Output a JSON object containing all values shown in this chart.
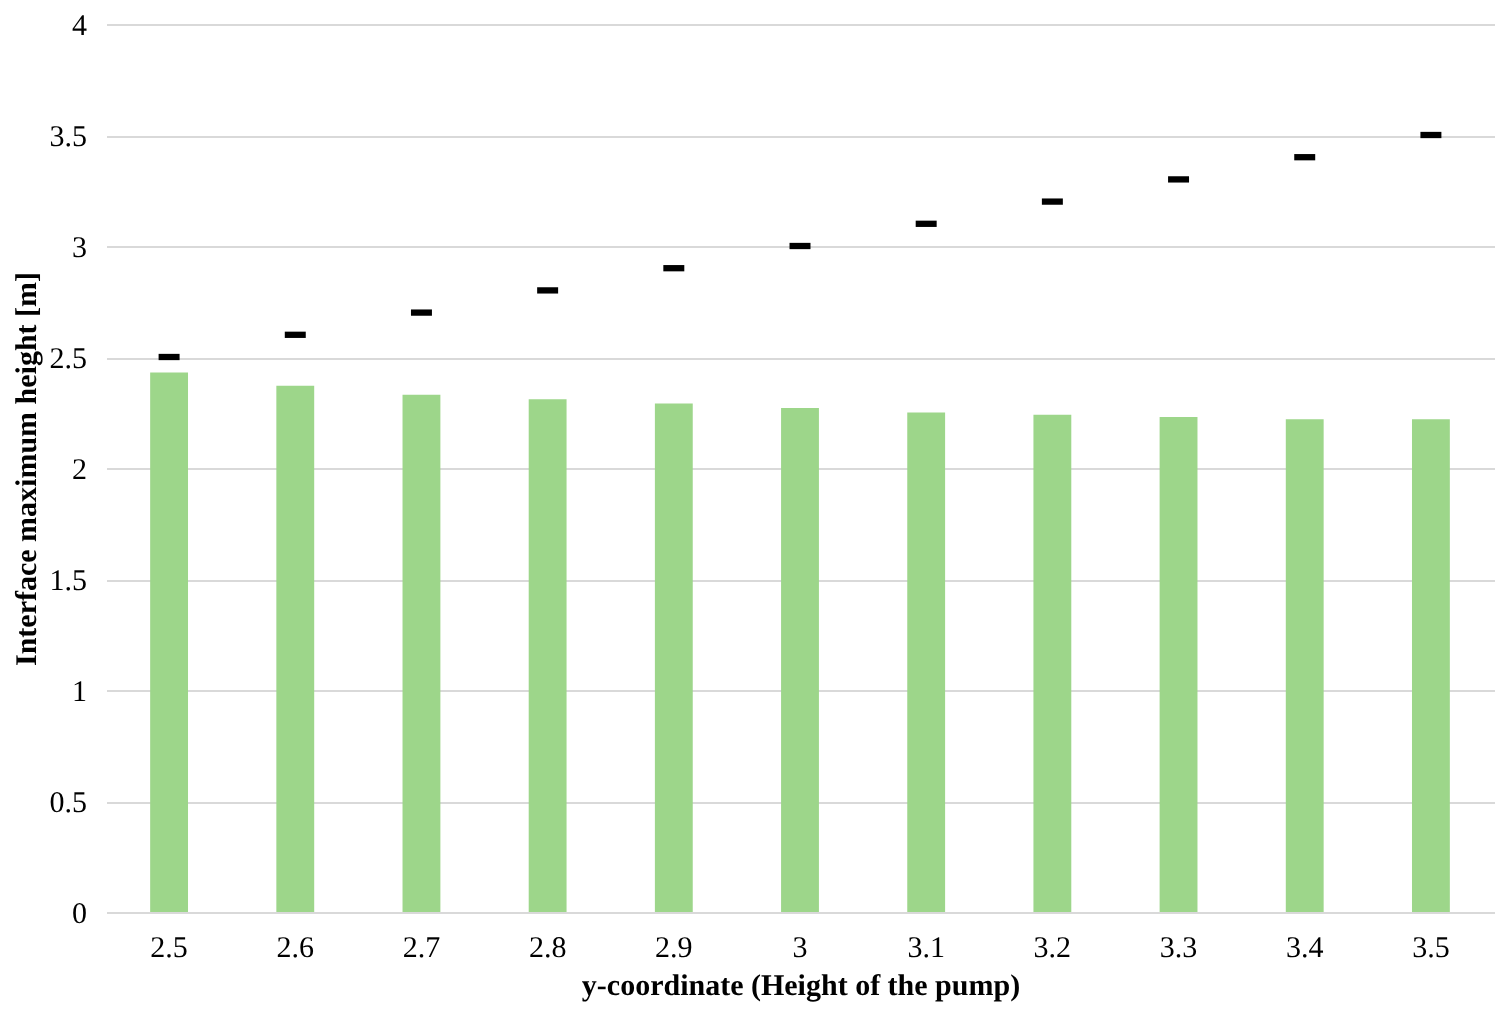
{
  "chart_data": {
    "type": "bar",
    "xlabel": "y-coordinate (Height of the pump)",
    "ylabel": "Interface maximum height [m]",
    "categories": [
      "2.5",
      "2.6",
      "2.7",
      "2.8",
      "2.9",
      "3",
      "3.1",
      "3.2",
      "3.3",
      "3.4",
      "3.5"
    ],
    "series": [
      {
        "color": "#9dd68a",
        "values": [
          2.43,
          2.37,
          2.33,
          2.31,
          2.29,
          2.27,
          2.25,
          2.24,
          2.23,
          2.22,
          2.22
        ]
      },
      {
        "type": "scatter",
        "color": "#000000",
        "x": [
          "2.5",
          "2.6",
          "2.7",
          "2.8",
          "2.9",
          "3",
          "3.1",
          "3.2",
          "3.3",
          "3.4",
          "3.5"
        ],
        "values": [
          2.5,
          2.6,
          2.7,
          2.8,
          2.9,
          3.0,
          3.1,
          3.2,
          3.3,
          3.4,
          3.5
        ]
      }
    ],
    "ylim": [
      0,
      4
    ],
    "yticks": [
      0,
      0.5,
      1,
      1.5,
      2,
      2.5,
      3,
      3.5,
      4
    ],
    "grid": "y"
  }
}
